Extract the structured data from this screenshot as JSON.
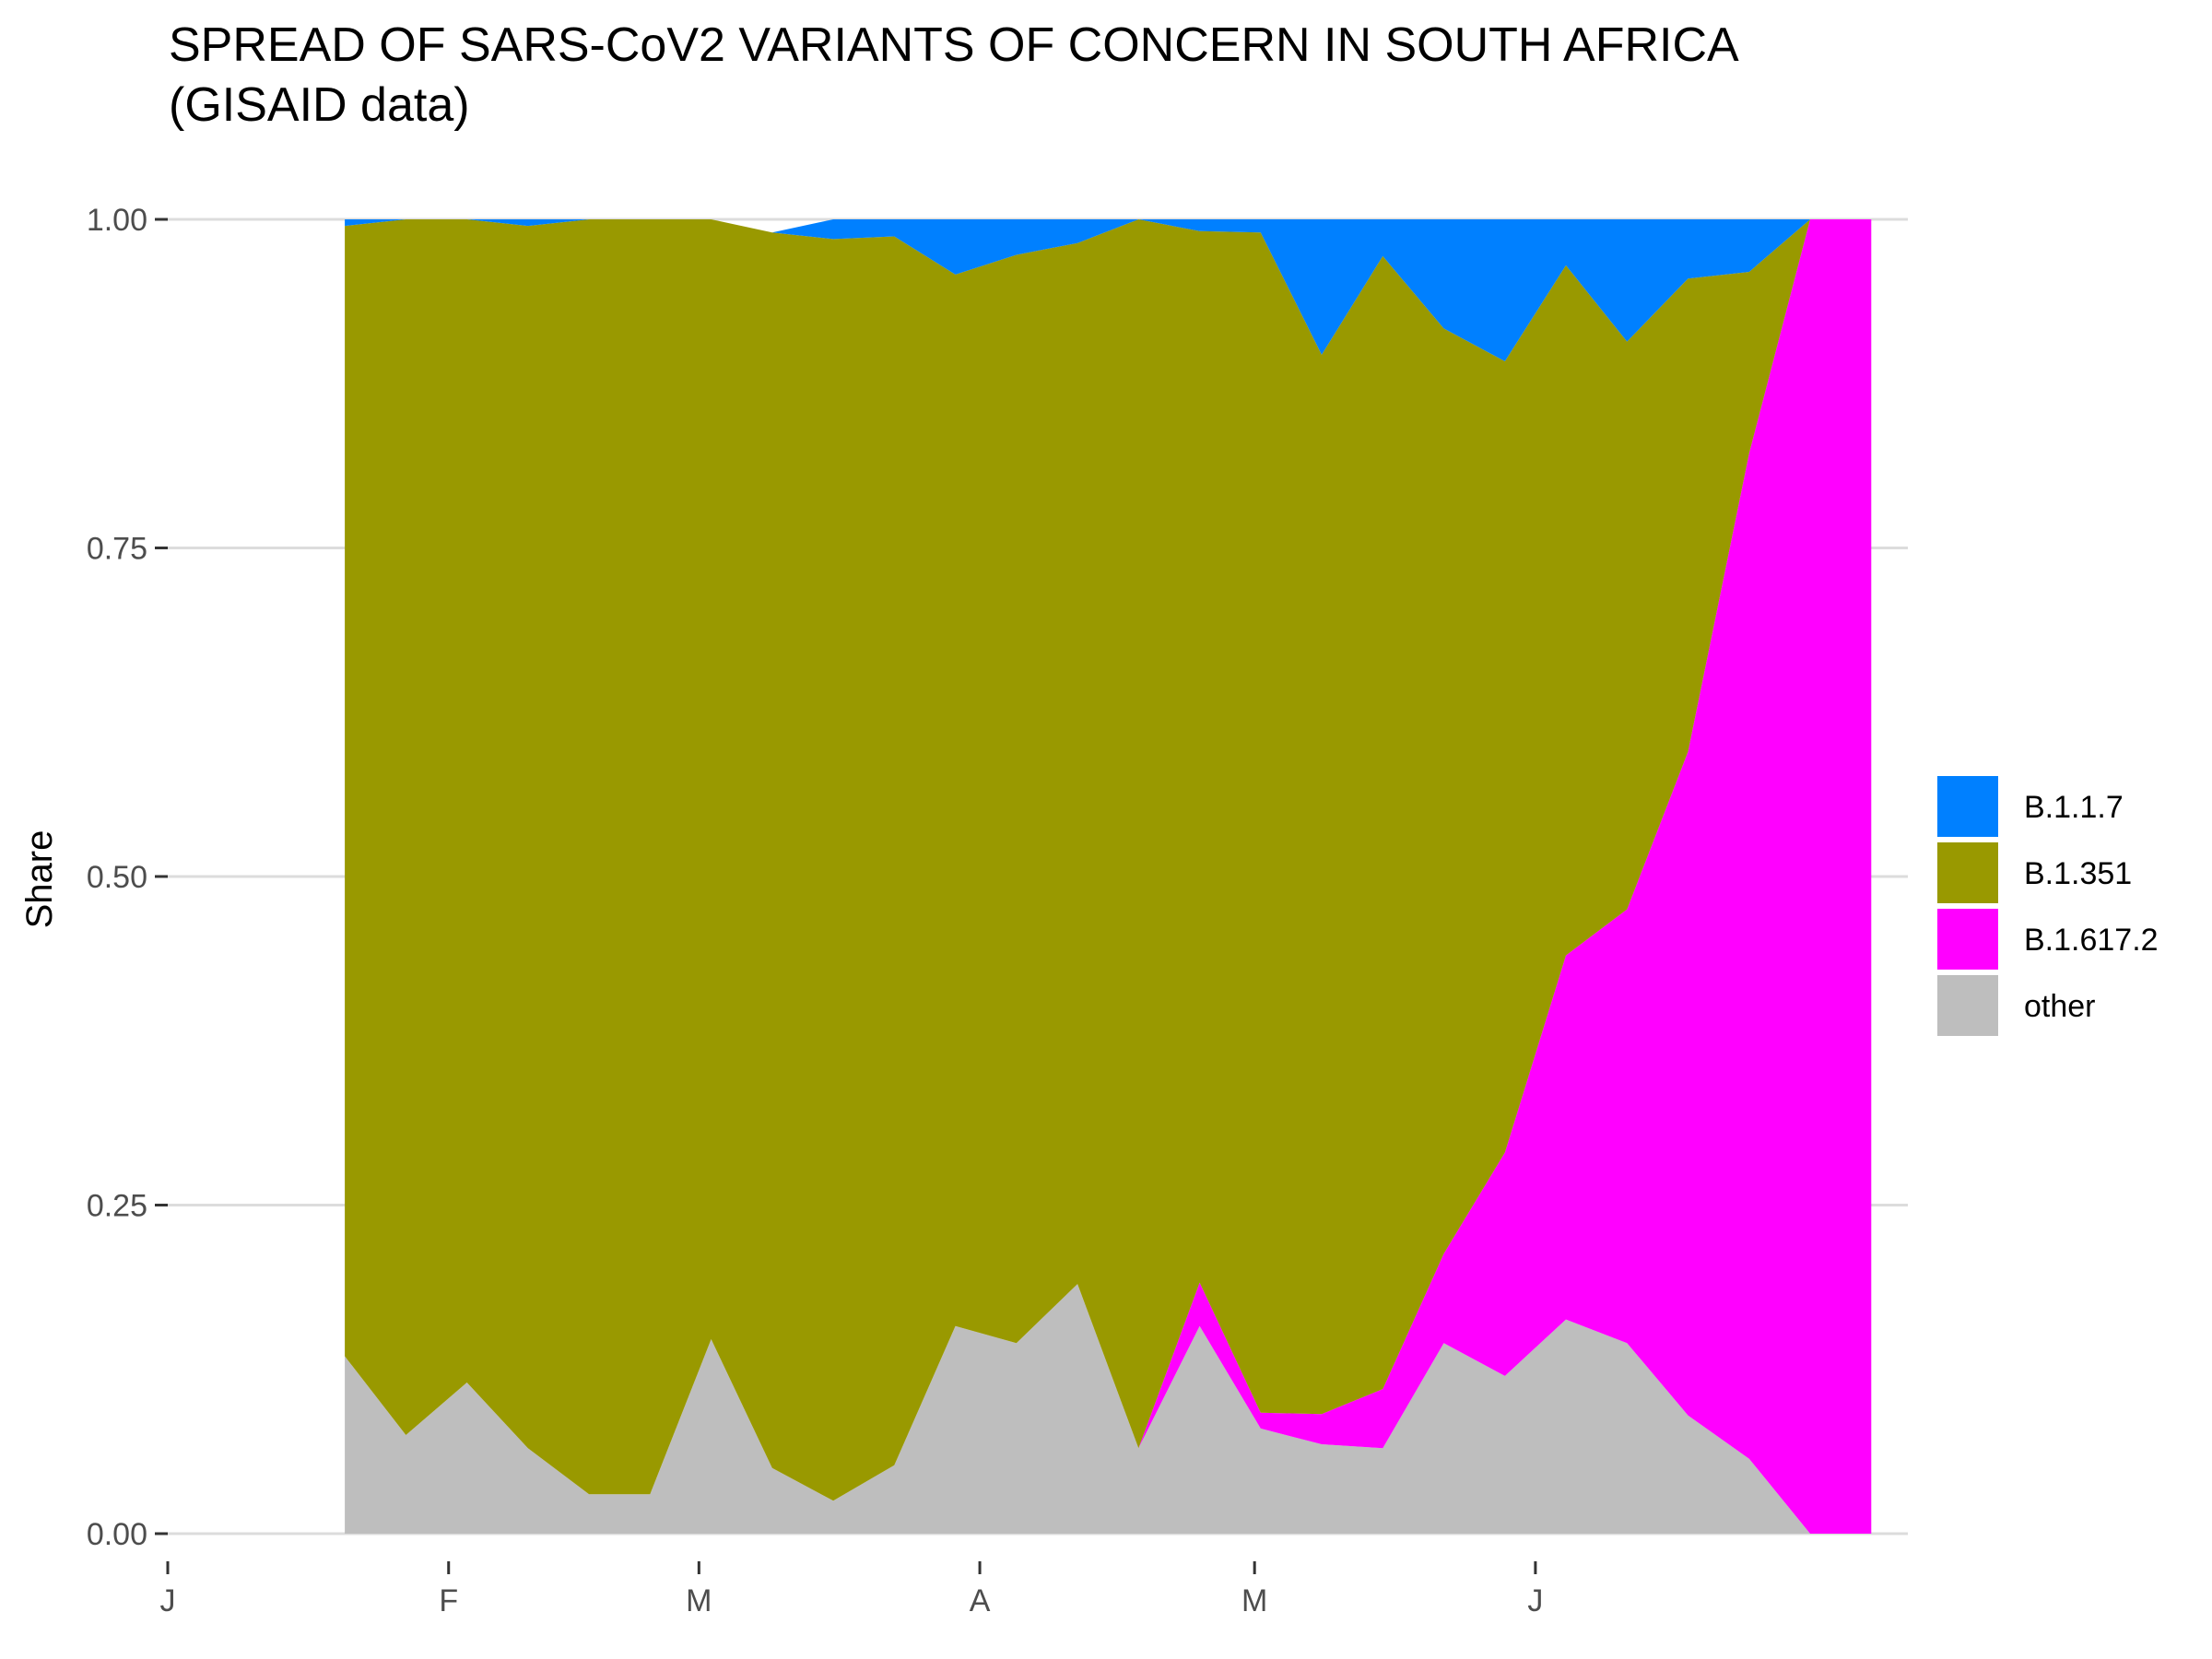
{
  "chart_data": {
    "type": "area",
    "stacked": "fill",
    "title_line1": "SPREAD OF SARS-CoV2 VARIANTS OF CONCERN IN SOUTH AFRICA",
    "title_line2": "(GISAID data)",
    "xlabel": "",
    "ylabel": "Share",
    "ylim": [
      0,
      1
    ],
    "yticks": [
      "0.00",
      "0.25",
      "0.50",
      "0.75",
      "1.00"
    ],
    "ytick_values": [
      0,
      0.25,
      0.5,
      0.75,
      1
    ],
    "xticks": [
      {
        "label": "J",
        "x": -2.9
      },
      {
        "label": "F",
        "x": 1.7
      },
      {
        "label": "M",
        "x": 5.8
      },
      {
        "label": "A",
        "x": 10.4
      },
      {
        "label": "M",
        "x": 14.9
      },
      {
        "label": "J",
        "x": 19.5
      }
    ],
    "xlim": [
      -2.9,
      25.6
    ],
    "x": [
      0,
      1,
      2,
      3,
      4,
      5,
      6,
      7,
      8,
      9,
      10,
      11,
      12,
      13,
      14,
      15,
      16,
      17,
      18,
      19,
      20,
      21,
      22,
      23,
      24,
      25
    ],
    "series": [
      {
        "name": "other",
        "color": "#bebebe",
        "values": [
          0.135,
          0.075,
          0.115,
          0.065,
          0.03,
          0.03,
          0.148,
          0.05,
          0.025,
          0.052,
          0.158,
          0.145,
          0.19,
          0.065,
          0.158,
          0.08,
          0.068,
          0.065,
          0.145,
          0.12,
          0.163,
          0.145,
          0.09,
          0.057,
          0.0,
          0.0
        ]
      },
      {
        "name": "B.1.617.2",
        "color": "#ff00ff",
        "values": [
          0,
          0,
          0,
          0,
          0,
          0,
          0,
          0,
          0,
          0,
          0,
          0,
          0,
          0,
          0.033,
          0.012,
          0.023,
          0.045,
          0.068,
          0.17,
          0.277,
          0.33,
          0.505,
          0.765,
          1.0,
          1.0
        ]
      },
      {
        "name": "B.1.351",
        "color": "#999900",
        "values": [
          0.86,
          0.925,
          0.885,
          0.93,
          0.97,
          0.97,
          0.852,
          0.94,
          0.96,
          0.935,
          0.8,
          0.828,
          0.792,
          0.935,
          0.8,
          0.898,
          0.806,
          0.862,
          0.704,
          0.602,
          0.525,
          0.432,
          0.36,
          0.138,
          0.0,
          0.0
        ]
      },
      {
        "name": "B.1.1.7",
        "color": "#0080ff",
        "values": [
          0.005,
          0,
          0,
          0.005,
          0,
          0,
          0,
          0,
          0.015,
          0.013,
          0.042,
          0.027,
          0.018,
          0,
          0.009,
          0.01,
          0.103,
          0.028,
          0.083,
          0.108,
          0.035,
          0.093,
          0.045,
          0.04,
          0.0,
          0.0
        ]
      }
    ],
    "legend": {
      "position": "right",
      "entries": [
        {
          "name": "B.1.1.7",
          "color": "#0080ff"
        },
        {
          "name": "B.1.351",
          "color": "#999900"
        },
        {
          "name": "B.1.617.2",
          "color": "#ff00ff"
        },
        {
          "name": "other",
          "color": "#bebebe"
        }
      ]
    },
    "grid": "horizontal-major",
    "background": "#ffffff"
  }
}
